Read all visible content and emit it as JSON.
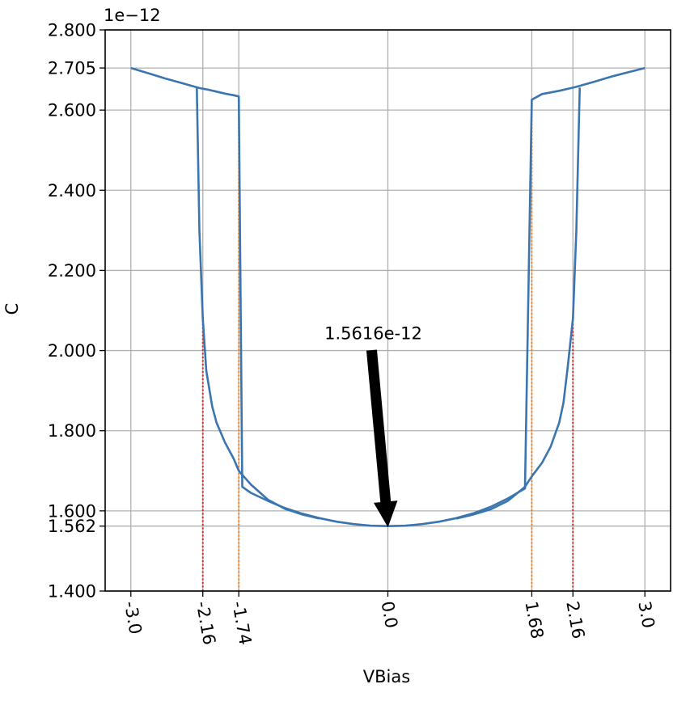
{
  "chart_data": {
    "type": "line",
    "title": "",
    "xlabel": "VBias",
    "ylabel": "C",
    "y_offset_label": "1e−12",
    "x_ticks": [
      {
        "value": -3.0,
        "label": "-3.0"
      },
      {
        "value": -2.16,
        "label": "-2.16"
      },
      {
        "value": -1.74,
        "label": "-1.74"
      },
      {
        "value": 0.0,
        "label": "0.0"
      },
      {
        "value": 1.68,
        "label": "1.68"
      },
      {
        "value": 2.16,
        "label": "2.16"
      },
      {
        "value": 3.0,
        "label": "3.0"
      }
    ],
    "y_ticks": [
      {
        "value": 1.4,
        "label": "1.400"
      },
      {
        "value": 1.562,
        "label": "1.562"
      },
      {
        "value": 1.6,
        "label": "1.600"
      },
      {
        "value": 1.8,
        "label": "1.800"
      },
      {
        "value": 2.0,
        "label": "2.000"
      },
      {
        "value": 2.2,
        "label": "2.200"
      },
      {
        "value": 2.4,
        "label": "2.400"
      },
      {
        "value": 2.6,
        "label": "2.600"
      },
      {
        "value": 2.705,
        "label": "2.705"
      },
      {
        "value": 2.8,
        "label": "2.800"
      }
    ],
    "xlim": [
      -3.3,
      3.3
    ],
    "ylim": [
      1.4,
      2.8
    ],
    "grid": true,
    "series": [
      {
        "color": "#3b75af",
        "x": [
          -3.0,
          -2.8,
          -2.6,
          -2.4,
          -2.2,
          -2.1,
          -2.0,
          -1.9,
          -1.8,
          -1.74,
          -1.7,
          -1.6,
          -1.4,
          -1.2,
          -1.0,
          -0.8,
          -0.6,
          -0.4,
          -0.2,
          0.0,
          0.2,
          0.4,
          0.6,
          0.8,
          1.0,
          1.2,
          1.4,
          1.6,
          1.68,
          1.8,
          2.0,
          2.1,
          2.16,
          2.2,
          2.4,
          2.6,
          2.8,
          3.0
        ],
        "y": [
          2.705,
          2.692,
          2.679,
          2.667,
          2.655,
          2.651,
          2.646,
          2.641,
          2.637,
          2.634,
          1.66,
          1.645,
          1.625,
          1.607,
          1.593,
          1.582,
          1.573,
          1.567,
          1.563,
          1.562,
          1.563,
          1.567,
          1.573,
          1.582,
          1.594,
          1.61,
          1.631,
          1.656,
          2.626,
          2.64,
          2.648,
          2.653,
          2.656,
          2.658,
          2.67,
          2.683,
          2.694,
          2.705
        ]
      },
      {
        "color": "#3b75af",
        "x": [
          -2.23,
          -2.2,
          -2.16,
          -2.12,
          -2.05,
          -2.0,
          -1.9,
          -1.8,
          -1.74,
          -1.6,
          -1.4,
          -1.2,
          -1.0,
          -0.8
        ],
        "y": [
          2.656,
          2.3,
          2.08,
          1.95,
          1.86,
          1.82,
          1.77,
          1.73,
          1.7,
          1.666,
          1.628,
          1.605,
          1.591,
          1.581
        ]
      },
      {
        "color": "#3b75af",
        "x": [
          0.8,
          1.0,
          1.2,
          1.4,
          1.6,
          1.68,
          1.8,
          1.9,
          2.0,
          2.05,
          2.1,
          2.16,
          2.2,
          2.24
        ],
        "y": [
          1.581,
          1.591,
          1.604,
          1.625,
          1.66,
          1.686,
          1.72,
          1.76,
          1.82,
          1.87,
          1.96,
          2.08,
          2.3,
          2.656
        ]
      }
    ],
    "vlines": [
      {
        "x": -2.16,
        "y_from": 1.4,
        "y_to": 2.09,
        "color": "#d62728",
        "style": "dotted"
      },
      {
        "x": 2.16,
        "y_from": 1.4,
        "y_to": 2.09,
        "color": "#d62728",
        "style": "dotted"
      },
      {
        "x": -1.74,
        "y_from": 1.4,
        "y_to": 2.634,
        "color": "#ff7f0e",
        "style": "dotted"
      },
      {
        "x": 1.68,
        "y_from": 1.4,
        "y_to": 2.626,
        "color": "#ff7f0e",
        "style": "dotted"
      }
    ],
    "annotation": {
      "text": "1.5616e-12",
      "point_x": 0.0,
      "point_y": 1.5616,
      "text_x": 0.0,
      "text_y": 2.0
    }
  }
}
